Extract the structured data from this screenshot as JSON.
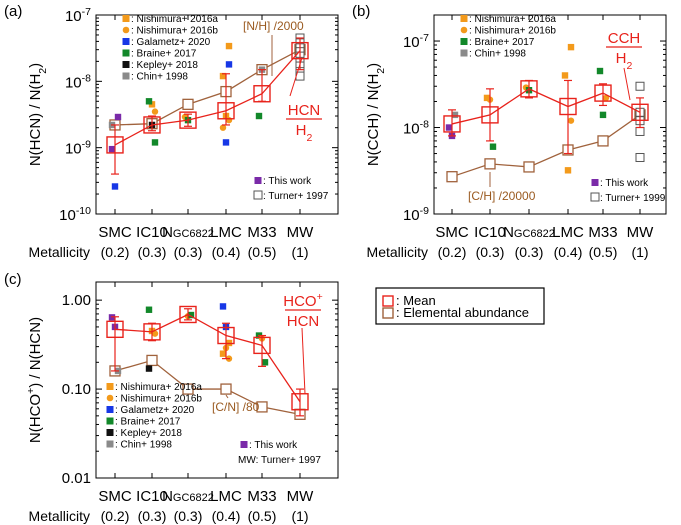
{
  "colors": {
    "mean": "#e8221b",
    "elemental": "#a0623c",
    "elemental_label": "#9a5a20",
    "nishimura_a": "#f39a1b",
    "nishimura_b": "#f39a1b",
    "galametz": "#1737e6",
    "braine": "#12882a",
    "kepley": "#111111",
    "chin": "#8a8a8a",
    "this_work": "#7a2aa8",
    "turner": "#555555"
  },
  "common": {
    "galaxies": [
      "SMC",
      "IC10",
      "NGC6822",
      "LMC",
      "M33",
      "MW"
    ],
    "galaxy_labels": [
      "SMC",
      "IC10",
      "N",
      "LMC",
      "M33",
      "MW"
    ],
    "ngc_small": "GC6822",
    "metallicity_label": "Metallicity",
    "metallicities": [
      "(0.2)",
      "(0.3)",
      "(0.3)",
      "(0.4)",
      "(0.5)",
      "(1)"
    ],
    "legend_mean": ": Mean",
    "legend_elemental": ": Elemental abundance"
  },
  "chart_data": [
    {
      "id": "a",
      "panel_label": "(a)",
      "type": "scatter",
      "scale": "log",
      "ylim": [
        1e-10,
        1e-07
      ],
      "ylabel": "N(HCN) / N(H2)",
      "yticks": [
        {
          "v": 1e-10,
          "label": "10-10"
        },
        {
          "v": 1e-09,
          "label": "10-9"
        },
        {
          "v": 1e-08,
          "label": "10-8"
        },
        {
          "v": 1e-07,
          "label": "10-7"
        }
      ],
      "ratio_label": {
        "num": "HCN",
        "den": "H2"
      },
      "elemental_label": "[N/H] /2000",
      "mean": [
        {
          "g": 0,
          "v": 1.1e-09,
          "lo": 4e-10,
          "hi": 2.2e-09
        },
        {
          "g": 1,
          "v": 2.2e-09,
          "lo": 1.8e-09,
          "hi": 3e-09
        },
        {
          "g": 2,
          "v": 2.6e-09,
          "lo": 2.1e-09,
          "hi": 3.2e-09
        },
        {
          "g": 3,
          "v": 3.6e-09,
          "lo": 2.2e-09,
          "hi": 1.3e-08
        },
        {
          "g": 4,
          "v": 6.5e-09,
          "lo": 5e-09,
          "hi": 1.5e-08
        },
        {
          "g": 5,
          "v": 2.9e-08,
          "lo": 1.5e-08,
          "hi": 4.5e-08
        }
      ],
      "elemental": [
        {
          "g": 0,
          "v": 2.2e-09
        },
        {
          "g": 1,
          "v": 2.3e-09
        },
        {
          "g": 2,
          "v": 4.5e-09
        },
        {
          "g": 3,
          "v": 7e-09
        },
        {
          "g": 4,
          "v": 1.5e-08
        },
        {
          "g": 5,
          "v": 3e-08
        }
      ],
      "points": [
        {
          "src": "chin",
          "g": 0,
          "v": 2.2e-09
        },
        {
          "src": "galametz",
          "g": 0,
          "v": 2.6e-10
        },
        {
          "src": "this_work",
          "g": 0,
          "v": 2.9e-09
        },
        {
          "src": "this_work",
          "g": 0,
          "v": 9.5e-10
        },
        {
          "src": "nishimura_a",
          "g": 1,
          "v": 4.5e-09
        },
        {
          "src": "nishimura_b",
          "g": 1,
          "v": 3.5e-09
        },
        {
          "src": "braine",
          "g": 1,
          "v": 5e-09
        },
        {
          "src": "kepley",
          "g": 1,
          "v": 2.2e-09
        },
        {
          "src": "braine",
          "g": 1,
          "v": 1.2e-09
        },
        {
          "src": "nishimura_b",
          "g": 2,
          "v": 2.9e-09
        },
        {
          "src": "braine",
          "g": 2,
          "v": 2.6e-09
        },
        {
          "src": "nishimura_a",
          "g": 3,
          "v": 3.4e-08
        },
        {
          "src": "nishimura_a",
          "g": 3,
          "v": 1.2e-08
        },
        {
          "src": "nishimura_a",
          "g": 3,
          "v": 3e-09
        },
        {
          "src": "nishimura_b",
          "g": 3,
          "v": 2.6e-09
        },
        {
          "src": "nishimura_b",
          "g": 3,
          "v": 2e-09
        },
        {
          "src": "galametz",
          "g": 3,
          "v": 1.2e-09
        },
        {
          "src": "galametz",
          "g": 3,
          "v": 1.8e-08
        },
        {
          "src": "braine",
          "g": 4,
          "v": 3e-09
        },
        {
          "src": "chin",
          "g": 4,
          "v": 1.5e-08
        }
      ],
      "turner": [
        4.5e-08,
        3.8e-08,
        3.2e-08,
        2.8e-08,
        2.4e-08,
        2e-08,
        1.7e-08,
        1.4e-08,
        1.2e-08
      ],
      "legend": [
        {
          "src": "nishimura_a",
          "shape": "square",
          "text": ": Nishimura+ 2016a"
        },
        {
          "src": "nishimura_b",
          "shape": "circle",
          "text": ": Nishimura+ 2016b"
        },
        {
          "src": "galametz",
          "shape": "square",
          "text": ": Galametz+ 2020"
        },
        {
          "src": "braine",
          "shape": "square",
          "text": ": Braine+ 2017"
        },
        {
          "src": "kepley",
          "shape": "square",
          "text": ": Kepley+ 2018"
        },
        {
          "src": "chin",
          "shape": "square",
          "text": ": Chin+ 1998"
        }
      ],
      "legend_lower": [
        {
          "src": "this_work",
          "shape": "square",
          "text": ": This work"
        },
        {
          "src": "turner",
          "shape": "open",
          "text": ": Turner+ 1997"
        }
      ]
    },
    {
      "id": "b",
      "panel_label": "(b)",
      "type": "scatter",
      "scale": "log",
      "ylim": [
        1e-09,
        2e-07
      ],
      "ylabel": "N(CCH) / N(H2)",
      "yticks": [
        {
          "v": 1e-09,
          "label": "10-9"
        },
        {
          "v": 1e-08,
          "label": "10-8"
        },
        {
          "v": 1e-07,
          "label": "10-7"
        }
      ],
      "ratio_label": {
        "num": "CCH",
        "den": "H2"
      },
      "elemental_label": "[C/H] /20000",
      "mean": [
        {
          "g": 0,
          "v": 1.1e-08,
          "lo": 8e-09,
          "hi": 1.6e-08
        },
        {
          "g": 1,
          "v": 1.4e-08,
          "lo": 7e-09,
          "hi": 2.8e-08
        },
        {
          "g": 2,
          "v": 2.8e-08,
          "lo": 2.2e-08,
          "hi": 3.5e-08
        },
        {
          "g": 3,
          "v": 1.75e-08,
          "lo": 5e-09,
          "hi": 3.5e-08
        },
        {
          "g": 4,
          "v": 2.5e-08,
          "lo": 1.8e-08,
          "hi": 3.2e-08
        },
        {
          "g": 5,
          "v": 1.5e-08,
          "lo": 1e-08,
          "hi": 2.2e-08
        }
      ],
      "elemental": [
        {
          "g": 0,
          "v": 2.7e-09
        },
        {
          "g": 1,
          "v": 3.8e-09
        },
        {
          "g": 2,
          "v": 3.5e-09
        },
        {
          "g": 3,
          "v": 5.5e-09
        },
        {
          "g": 4,
          "v": 7e-09
        },
        {
          "g": 5,
          "v": 1.4e-08
        }
      ],
      "points": [
        {
          "src": "this_work",
          "g": 0,
          "v": 1e-08
        },
        {
          "src": "this_work",
          "g": 0,
          "v": 8e-09
        },
        {
          "src": "chin",
          "g": 0,
          "v": 1.4e-08
        },
        {
          "src": "nishimura_a",
          "g": 1,
          "v": 2.2e-08
        },
        {
          "src": "nishimura_b",
          "g": 1,
          "v": 2.1e-08
        },
        {
          "src": "braine",
          "g": 1,
          "v": 6e-09
        },
        {
          "src": "nishimura_b",
          "g": 2,
          "v": 2.9e-08
        },
        {
          "src": "braine",
          "g": 2,
          "v": 2.7e-08
        },
        {
          "src": "nishimura_a",
          "g": 3,
          "v": 8.5e-08
        },
        {
          "src": "nishimura_a",
          "g": 3,
          "v": 4e-08
        },
        {
          "src": "nishimura_a",
          "g": 3,
          "v": 3.2e-09
        },
        {
          "src": "nishimura_b",
          "g": 3,
          "v": 1.2e-08
        },
        {
          "src": "braine",
          "g": 4,
          "v": 4.5e-08
        },
        {
          "src": "braine",
          "g": 4,
          "v": 1.4e-08
        },
        {
          "src": "nishimura_b",
          "g": 4,
          "v": 2.2e-08
        }
      ],
      "turner": [
        3e-08,
        1.5e-08,
        1.2e-08,
        9e-09,
        4.5e-09
      ],
      "legend": [
        {
          "src": "nishimura_a",
          "shape": "square",
          "text": ": Nishimura+ 2016a"
        },
        {
          "src": "nishimura_b",
          "shape": "circle",
          "text": ": Nishimura+ 2016b"
        },
        {
          "src": "braine",
          "shape": "square",
          "text": ": Braine+ 2017"
        },
        {
          "src": "chin",
          "shape": "square",
          "text": ": Chin+ 1998"
        }
      ],
      "legend_lower": [
        {
          "src": "this_work",
          "shape": "square",
          "text": ": This work"
        },
        {
          "src": "turner",
          "shape": "open",
          "text": ": Turner+ 1999"
        }
      ]
    },
    {
      "id": "c",
      "panel_label": "(c)",
      "type": "scatter",
      "scale": "log",
      "ylim": [
        0.01,
        1.6
      ],
      "ylabel": "N(HCO+) / N(HCN)",
      "yticks": [
        {
          "v": 0.01,
          "label": "0.01"
        },
        {
          "v": 0.1,
          "label": "0.10"
        },
        {
          "v": 1,
          "label": "1.00"
        }
      ],
      "ratio_label": {
        "num": "HCO+",
        "den": "HCN"
      },
      "elemental_label": "[C/N] /80",
      "mean": [
        {
          "g": 0,
          "v": 0.47,
          "lo": 0.16,
          "hi": 0.65
        },
        {
          "g": 1,
          "v": 0.44,
          "lo": 0.35,
          "hi": 0.55
        },
        {
          "g": 2,
          "v": 0.69,
          "lo": 0.6,
          "hi": 0.8
        },
        {
          "g": 3,
          "v": 0.4,
          "lo": 0.22,
          "hi": 0.55
        },
        {
          "g": 4,
          "v": 0.31,
          "lo": 0.18,
          "hi": 0.4
        },
        {
          "g": 5,
          "v": 0.072,
          "lo": 0.05,
          "hi": 0.1
        }
      ],
      "elemental": [
        {
          "g": 0,
          "v": 0.16
        },
        {
          "g": 1,
          "v": 0.21
        },
        {
          "g": 2,
          "v": 0.1
        },
        {
          "g": 3,
          "v": 0.1
        },
        {
          "g": 4,
          "v": 0.063
        },
        {
          "g": 5,
          "v": 0.052
        }
      ],
      "points": [
        {
          "src": "this_work",
          "g": 0,
          "v": 0.64
        },
        {
          "src": "this_work",
          "g": 0,
          "v": 0.5
        },
        {
          "src": "chin",
          "g": 0,
          "v": 0.16
        },
        {
          "src": "braine",
          "g": 1,
          "v": 0.78
        },
        {
          "src": "nishimura_a",
          "g": 1,
          "v": 0.45
        },
        {
          "src": "nishimura_b",
          "g": 1,
          "v": 0.42
        },
        {
          "src": "kepley",
          "g": 1,
          "v": 0.17
        },
        {
          "src": "nishimura_b",
          "g": 2,
          "v": 0.66
        },
        {
          "src": "braine",
          "g": 2,
          "v": 0.68
        },
        {
          "src": "galametz",
          "g": 3,
          "v": 0.85
        },
        {
          "src": "galametz",
          "g": 3,
          "v": 0.5
        },
        {
          "src": "nishimura_a",
          "g": 3,
          "v": 0.33
        },
        {
          "src": "nishimura_a",
          "g": 3,
          "v": 0.25
        },
        {
          "src": "nishimura_b",
          "g": 3,
          "v": 0.29
        },
        {
          "src": "nishimura_b",
          "g": 3,
          "v": 0.22
        },
        {
          "src": "braine",
          "g": 4,
          "v": 0.4
        },
        {
          "src": "nishimura_b",
          "g": 4,
          "v": 0.37
        },
        {
          "src": "braine",
          "g": 4,
          "v": 0.2
        }
      ],
      "turner": [],
      "legend": [
        {
          "src": "nishimura_a",
          "shape": "square",
          "text": ": Nishimura+ 2016a"
        },
        {
          "src": "nishimura_b",
          "shape": "circle",
          "text": ": Nishimura+ 2016b"
        },
        {
          "src": "galametz",
          "shape": "square",
          "text": ": Galametz+ 2020"
        },
        {
          "src": "braine",
          "shape": "square",
          "text": ": Braine+ 2017"
        },
        {
          "src": "kepley",
          "shape": "square",
          "text": ": Kepley+ 2018"
        },
        {
          "src": "chin",
          "shape": "square",
          "text": ": Chin+ 1998"
        }
      ],
      "legend_lower": [
        {
          "src": "this_work",
          "shape": "square",
          "text": ": This work"
        },
        {
          "src": "none",
          "shape": "none",
          "text": "MW: Turner+ 1997"
        }
      ]
    }
  ]
}
